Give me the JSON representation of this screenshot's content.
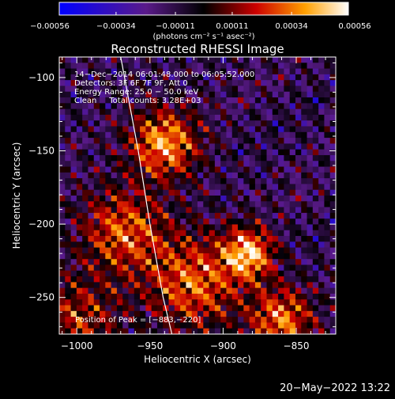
{
  "chart_data": {
    "type": "heatmap",
    "title": "Reconstructed RHESSI Image",
    "xlabel": "Heliocentric X (arcsec)",
    "ylabel": "Heliocentric Y (arcsec)",
    "xlim": [
      -1012,
      -823
    ],
    "ylim": [
      -275,
      -86
    ],
    "xticks": [
      -1000,
      -950,
      -900,
      -850
    ],
    "xtick_labels": [
      "−1000",
      "−950",
      "−900",
      "−850"
    ],
    "yticks": [
      -100,
      -150,
      -200,
      -250
    ],
    "ytick_labels": [
      "−100",
      "−150",
      "−200",
      "−250"
    ],
    "colorbar": {
      "range": [
        -0.00056,
        0.00056
      ],
      "tick_values": [
        -0.00056,
        -0.00034,
        -0.00011,
        0.00011,
        0.00034,
        0.00056
      ],
      "tick_labels": [
        "−0.00056",
        "−0.00034",
        "−0.00011",
        "0.00011",
        "0.00034",
        "0.00056"
      ],
      "unit_label": "(photons cm⁻² s⁻¹ asec⁻²)"
    },
    "annotations": [
      "14−Dec−2014 06:01:48.000 to 06:05:52.000",
      "Detectors: 3F 6F 7F 9F, Att 0",
      "Energy Range: 25.0 − 50.0 keV",
      "Clean     Total counts: 3.28E+03"
    ],
    "peak_label": "Position of Peak = [−883,−220]",
    "peak": [
      -883,
      -220
    ],
    "limb_curve": [
      [
        -970,
        -86
      ],
      [
        -958,
        -150
      ],
      [
        -950,
        -200
      ],
      [
        -941,
        -250
      ],
      [
        -935,
        -275
      ]
    ],
    "grid": false,
    "sources": [
      {
        "x": -940,
        "y": -145,
        "amp": 0.00052,
        "sigma": 16
      },
      {
        "x": -968,
        "y": -205,
        "amp": 0.0004,
        "sigma": 20
      },
      {
        "x": -920,
        "y": -240,
        "amp": 0.00042,
        "sigma": 22
      },
      {
        "x": -883,
        "y": -220,
        "amp": 0.00056,
        "sigma": 12
      },
      {
        "x": -860,
        "y": -265,
        "amp": 0.00045,
        "sigma": 15
      },
      {
        "x": -1000,
        "y": -265,
        "amp": 0.0003,
        "sigma": 20
      }
    ]
  },
  "footer": {
    "date": "20−May−2022 13:22"
  }
}
